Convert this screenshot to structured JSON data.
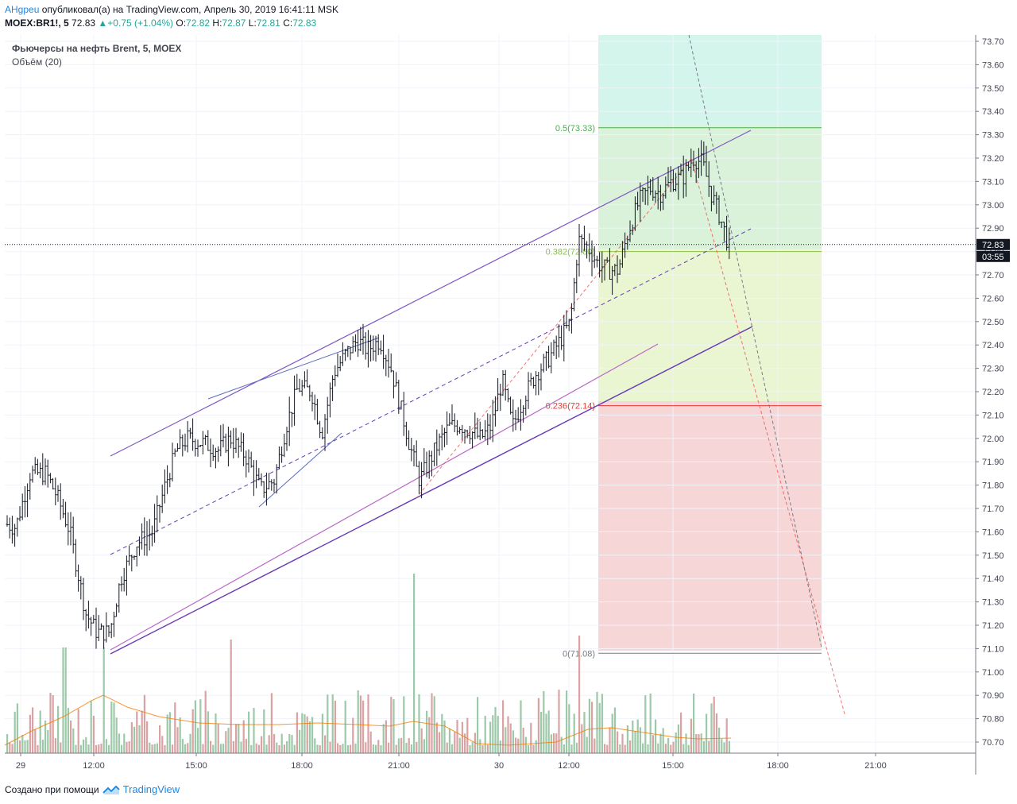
{
  "header": {
    "author": "AHgpeu",
    "published_text": "опубликовал(а) на TradingView.com, Апрель 30, 2019 16:41:11 MSK",
    "symbol": "MOEX:BR1!, 5",
    "last": "72.83",
    "change": "+0.75 (+1.04%)",
    "o_label": "O:",
    "o": "72.82",
    "h_label": "H:",
    "h": "72.87",
    "l_label": "L:",
    "l": "72.81",
    "c_label": "C:",
    "c": "72.83"
  },
  "legend": {
    "title": "Фьючерсы на нефть Brent, 5, MOEX",
    "volume": "Объём (20)"
  },
  "price_labels": {
    "last": "72.83",
    "timer": "03:55"
  },
  "footer": {
    "text": "Создано при помощи",
    "brand": "TradingView"
  },
  "chart_data": {
    "type": "bar",
    "title": "Фьючерсы на нефть Brent, 5, MOEX",
    "y_axis": {
      "ticks": [
        "73.70",
        "73.60",
        "73.50",
        "73.40",
        "73.30",
        "73.20",
        "73.10",
        "73.00",
        "72.90",
        "72.80",
        "72.70",
        "72.60",
        "72.50",
        "72.40",
        "72.30",
        "72.20",
        "72.10",
        "72.00",
        "71.90",
        "71.80",
        "71.70",
        "71.60",
        "71.50",
        "71.40",
        "71.30",
        "71.20",
        "71.10",
        "71.00",
        "70.90",
        "70.80",
        "70.70"
      ],
      "range": [
        70.67,
        73.73
      ]
    },
    "x_axis": {
      "ticks": [
        "29",
        "12:00",
        "15:00",
        "18:00",
        "21:00",
        "30",
        "12:00",
        "15:00",
        "18:00",
        "21:00"
      ]
    },
    "fib_levels": [
      {
        "label": "0.5(73.33)",
        "value": 73.33,
        "color": "#4caf50"
      },
      {
        "label": "0.382(72.80)",
        "value": 72.8,
        "color": "#8bc34a"
      },
      {
        "label": "0.236(72.14)",
        "value": 72.14,
        "color": "#e53935"
      },
      {
        "label": "0(71.08)",
        "value": 71.08,
        "color": "#787b86"
      }
    ],
    "last_price": 72.83,
    "price_anchors": [
      [
        0,
        71.64
      ],
      [
        20,
        71.62
      ],
      [
        38,
        71.85
      ],
      [
        58,
        71.85
      ],
      [
        72,
        71.75
      ],
      [
        88,
        71.6
      ],
      [
        108,
        71.25
      ],
      [
        122,
        71.17
      ],
      [
        138,
        71.17
      ],
      [
        152,
        71.4
      ],
      [
        172,
        71.55
      ],
      [
        192,
        71.6
      ],
      [
        208,
        71.8
      ],
      [
        222,
        71.95
      ],
      [
        236,
        72.0
      ],
      [
        256,
        71.98
      ],
      [
        275,
        71.95
      ],
      [
        290,
        72.0
      ],
      [
        310,
        71.92
      ],
      [
        328,
        71.78
      ],
      [
        345,
        71.82
      ],
      [
        360,
        72.05
      ],
      [
        375,
        72.22
      ],
      [
        392,
        72.2
      ],
      [
        405,
        72.02
      ],
      [
        420,
        72.28
      ],
      [
        435,
        72.36
      ],
      [
        450,
        72.42
      ],
      [
        462,
        72.38
      ],
      [
        478,
        72.42
      ],
      [
        492,
        72.3
      ],
      [
        505,
        72.12
      ],
      [
        515,
        71.98
      ],
      [
        528,
        71.82
      ],
      [
        540,
        71.9
      ],
      [
        552,
        71.98
      ],
      [
        565,
        72.05
      ],
      [
        578,
        72.06
      ],
      [
        592,
        72.03
      ],
      [
        605,
        72.0
      ],
      [
        618,
        72.05
      ],
      [
        632,
        72.25
      ],
      [
        645,
        72.05
      ],
      [
        660,
        72.18
      ],
      [
        675,
        72.28
      ],
      [
        690,
        72.34
      ],
      [
        705,
        72.42
      ],
      [
        718,
        72.5
      ],
      [
        728,
        72.85
      ],
      [
        740,
        72.82
      ],
      [
        752,
        72.75
      ],
      [
        765,
        72.72
      ],
      [
        778,
        72.72
      ],
      [
        792,
        72.9
      ],
      [
        805,
        73.02
      ],
      [
        818,
        73.07
      ],
      [
        832,
        73.05
      ],
      [
        845,
        73.1
      ],
      [
        860,
        73.12
      ],
      [
        872,
        73.2
      ],
      [
        884,
        73.18
      ],
      [
        895,
        73.05
      ],
      [
        906,
        72.95
      ],
      [
        915,
        72.85
      ],
      [
        920,
        72.83
      ]
    ],
    "volume_ma_series": [
      [
        6,
        938
      ],
      [
        40,
        920
      ],
      [
        80,
        902
      ],
      [
        115,
        882
      ],
      [
        130,
        875
      ],
      [
        160,
        890
      ],
      [
        200,
        902
      ],
      [
        250,
        910
      ],
      [
        300,
        912
      ],
      [
        350,
        912
      ],
      [
        400,
        910
      ],
      [
        450,
        912
      ],
      [
        490,
        914
      ],
      [
        520,
        908
      ],
      [
        560,
        914
      ],
      [
        600,
        936
      ],
      [
        640,
        938
      ],
      [
        700,
        934
      ],
      [
        740,
        918
      ],
      [
        770,
        916
      ],
      [
        810,
        922
      ],
      [
        850,
        928
      ],
      [
        880,
        930
      ],
      [
        920,
        929
      ]
    ]
  }
}
